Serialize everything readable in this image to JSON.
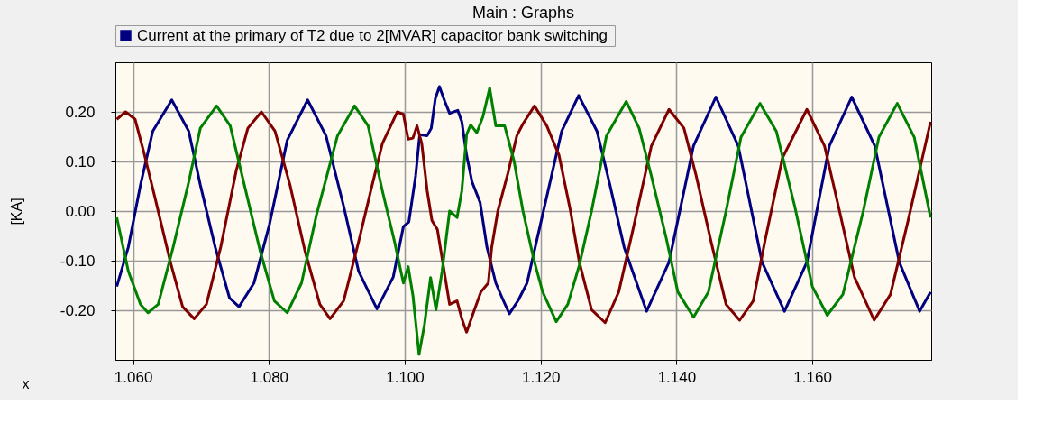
{
  "chart_data": {
    "type": "line",
    "title": "Main : Graphs",
    "xlabel": "x",
    "ylabel": "[KA]",
    "xlim": [
      1.0574,
      1.1775
    ],
    "ylim": [
      -0.3,
      0.3
    ],
    "xticks": [
      {
        "value": 1.06,
        "label": "1.060"
      },
      {
        "value": 1.08,
        "label": "1.080"
      },
      {
        "value": 1.1,
        "label": "1.100"
      },
      {
        "value": 1.12,
        "label": "1.120"
      },
      {
        "value": 1.14,
        "label": "1.140"
      },
      {
        "value": 1.16,
        "label": "1.160"
      }
    ],
    "yticks": [
      {
        "value": -0.2,
        "label": "-0.20"
      },
      {
        "value": -0.1,
        "label": "-0.10"
      },
      {
        "value": 0,
        "label": "0.00"
      },
      {
        "value": 0.1,
        "label": "0.10"
      },
      {
        "value": 0.2,
        "label": "0.20"
      }
    ],
    "grid": true,
    "legend": "top",
    "marker": "none",
    "line_style": "solid",
    "series": [
      {
        "name": "Current at the primary of T2  due to 2[MVAR] capacitor bank switching",
        "color": "#000080",
        "x": [
          1.0576,
          1.0593,
          1.0611,
          1.0629,
          1.0657,
          1.0682,
          1.0699,
          1.0721,
          1.0742,
          1.0756,
          1.0778,
          1.0801,
          1.0827,
          1.0857,
          1.0884,
          1.091,
          1.0932,
          1.0959,
          1.0983,
          1.0998,
          1.1006,
          1.1016,
          1.1022,
          1.1033,
          1.1039,
          1.1045,
          1.1051,
          1.1059,
          1.1066,
          1.1078,
          1.1084,
          1.1091,
          1.1099,
          1.1111,
          1.1121,
          1.1134,
          1.1145,
          1.1154,
          1.1167,
          1.118,
          1.1196,
          1.1213,
          1.1231,
          1.1256,
          1.1283,
          1.1302,
          1.1323,
          1.1356,
          1.1389,
          1.1425,
          1.1458,
          1.1491,
          1.1526,
          1.1559,
          1.1592,
          1.1625,
          1.1658,
          1.1692,
          1.1728,
          1.1758,
          1.1774
        ],
        "values": [
          -0.152,
          -0.073,
          0.053,
          0.161,
          0.224,
          0.161,
          0.053,
          -0.073,
          -0.175,
          -0.193,
          -0.145,
          -0.026,
          0.143,
          0.224,
          0.152,
          0.01,
          -0.121,
          -0.197,
          -0.133,
          -0.031,
          -0.022,
          0.071,
          0.154,
          0.152,
          0.167,
          0.227,
          0.251,
          0.221,
          0.197,
          0.203,
          0.18,
          0.113,
          0.059,
          0.017,
          -0.073,
          -0.145,
          -0.18,
          -0.207,
          -0.18,
          -0.145,
          -0.049,
          0.053,
          0.161,
          0.233,
          0.161,
          0.053,
          -0.073,
          -0.202,
          -0.103,
          0.131,
          0.23,
          0.131,
          -0.103,
          -0.202,
          -0.103,
          0.131,
          0.23,
          0.131,
          -0.103,
          -0.202,
          -0.163
        ]
      },
      {
        "color": "#800000",
        "x": [
          1.0576,
          1.0589,
          1.0603,
          1.0616,
          1.0633,
          1.0655,
          1.0673,
          1.069,
          1.0708,
          1.0729,
          1.0752,
          1.0769,
          1.0789,
          1.0809,
          1.0831,
          1.0853,
          1.0875,
          1.089,
          1.091,
          1.0932,
          1.095,
          1.0967,
          1.0989,
          1.0998,
          1.1005,
          1.1012,
          1.1018,
          1.1025,
          1.1033,
          1.104,
          1.1048,
          1.1058,
          1.1066,
          1.1077,
          1.1084,
          1.1091,
          1.1101,
          1.1112,
          1.1123,
          1.1128,
          1.1137,
          1.1152,
          1.1165,
          1.1174,
          1.1191,
          1.1209,
          1.1227,
          1.1244,
          1.1257,
          1.1275,
          1.1295,
          1.1315,
          1.1336,
          1.1363,
          1.1389,
          1.1411,
          1.1429,
          1.1451,
          1.1473,
          1.1493,
          1.1513,
          1.153,
          1.1556,
          1.1592,
          1.1618,
          1.164,
          1.1662,
          1.1691,
          1.1715,
          1.1741,
          1.1774
        ],
        "values": [
          0.185,
          0.2,
          0.185,
          0.118,
          0.023,
          -0.103,
          -0.193,
          -0.217,
          -0.188,
          -0.073,
          0.082,
          0.167,
          0.2,
          0.161,
          0.053,
          -0.08,
          -0.188,
          -0.217,
          -0.181,
          -0.062,
          0.041,
          0.136,
          0.2,
          0.195,
          0.145,
          0.147,
          0.172,
          0.136,
          0.041,
          -0.019,
          -0.037,
          -0.121,
          -0.188,
          -0.181,
          -0.217,
          -0.244,
          -0.205,
          -0.163,
          -0.145,
          -0.073,
          0.0,
          0.077,
          0.152,
          0.176,
          0.212,
          0.172,
          0.113,
          0.0,
          -0.103,
          -0.199,
          -0.225,
          -0.163,
          -0.037,
          0.131,
          0.205,
          0.167,
          0.071,
          -0.062,
          -0.188,
          -0.22,
          -0.181,
          -0.062,
          0.107,
          0.205,
          0.131,
          0.0,
          -0.133,
          -0.22,
          -0.168,
          -0.019,
          0.18
        ]
      },
      {
        "color": "#008000",
        "x": [
          1.0576,
          1.0593,
          1.0611,
          1.0622,
          1.0637,
          1.0659,
          1.0682,
          1.0699,
          1.0723,
          1.0743,
          1.0765,
          1.0787,
          1.0808,
          1.0827,
          1.0848,
          1.087,
          1.0901,
          1.0926,
          1.0946,
          1.0967,
          1.0985,
          1.0998,
          1.1005,
          1.1012,
          1.1021,
          1.1029,
          1.1038,
          1.1046,
          1.1055,
          1.1066,
          1.1077,
          1.1084,
          1.1091,
          1.1097,
          1.1106,
          1.1115,
          1.1125,
          1.1134,
          1.1147,
          1.1161,
          1.1174,
          1.119,
          1.1203,
          1.1223,
          1.124,
          1.1257,
          1.1275,
          1.1297,
          1.1326,
          1.1345,
          1.1363,
          1.1385,
          1.1402,
          1.1425,
          1.1447,
          1.1473,
          1.1495,
          1.1523,
          1.1547,
          1.1574,
          1.16,
          1.1622,
          1.1645,
          1.1675,
          1.1698,
          1.1725,
          1.175,
          1.1774
        ],
        "values": [
          -0.013,
          -0.121,
          -0.188,
          -0.205,
          -0.188,
          -0.073,
          0.059,
          0.167,
          0.212,
          0.172,
          0.046,
          -0.08,
          -0.181,
          -0.205,
          -0.145,
          -0.008,
          0.152,
          0.212,
          0.172,
          0.041,
          -0.062,
          -0.145,
          -0.112,
          -0.17,
          -0.289,
          -0.229,
          -0.134,
          -0.199,
          -0.121,
          0.0,
          -0.013,
          0.041,
          0.154,
          0.174,
          0.158,
          0.19,
          0.248,
          0.172,
          0.172,
          0.1,
          0.0,
          -0.098,
          -0.163,
          -0.223,
          -0.188,
          -0.109,
          0.0,
          0.152,
          0.221,
          0.167,
          0.071,
          -0.055,
          -0.163,
          -0.214,
          -0.163,
          0.0,
          0.149,
          0.217,
          0.161,
          0.01,
          -0.152,
          -0.21,
          -0.168,
          0.0,
          0.149,
          0.217,
          0.149,
          -0.013
        ]
      }
    ]
  }
}
